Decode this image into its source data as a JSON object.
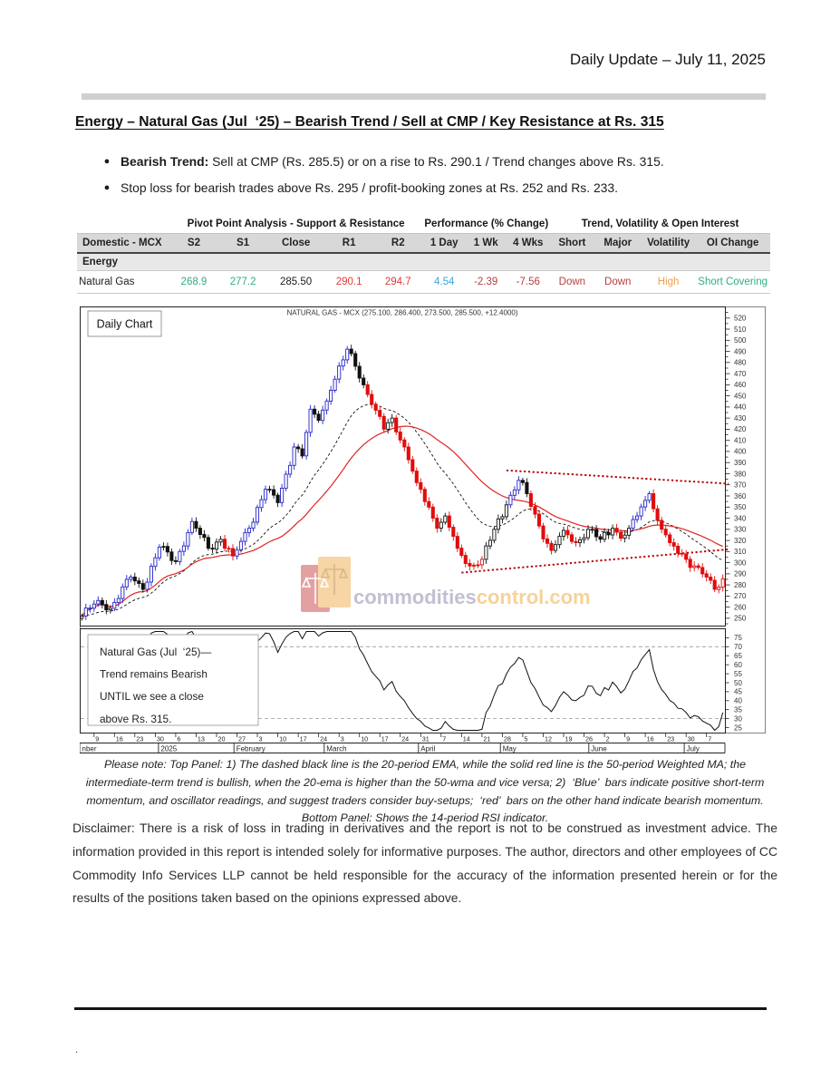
{
  "page": {
    "header_date": "Daily Update – July 11, 2025",
    "title": "Energy – Natural Gas (Jul  ‘25) – Bearish Trend / Sell at CMP / Key Resistance at Rs. 315",
    "bullets": [
      {
        "bold": "Bearish Trend:",
        "text": " Sell at CMP (Rs. 285.5) or on a rise to Rs. 290.1 / Trend changes above Rs. 315."
      },
      {
        "bold": "",
        "text": "Stop loss for bearish trades above Rs. 295 / profit-booking zones at Rs. 252 and Rs. 233."
      }
    ],
    "note": "Please note: Top Panel: 1) The dashed black line is the 20-period EMA, while the solid red line is the 50-period Weighted MA; the intermediate-term trend is bullish, when the 20-ema is higher than the 50-wma and vice versa; 2)  ‘Blue’  bars indicate positive short-term momentum, and oscillator readings, and suggest traders consider buy-setups;  ‘red’  bars on the other hand indicate bearish momentum. Bottom Panel: Shows the 14-period RSI indicator.",
    "disclaimer": "Disclaimer: There is a risk of loss in trading in derivatives and the report is not to be construed as investment advice. The information provided in this report is intended solely for informative purposes. The author, directors and other employees of CC Commodity Info Services LLP cannot be held responsible for the accuracy of the information presented herein or for the results of the positions taken based on the opinions expressed above.",
    "footer_dot": "."
  },
  "table": {
    "group_headers": [
      "Pivot Point Analysis - Support & Resistance",
      "Performance (% Change)",
      "Trend, Volatility & Open Interest"
    ],
    "columns": [
      "Domestic - MCX",
      "S2",
      "S1",
      "Close",
      "R1",
      "R2",
      "1 Day",
      "1 Wk",
      "4 Wks",
      "Short",
      "Major",
      "Volatility",
      "OI Change"
    ],
    "section_label": "Energy",
    "rows": [
      {
        "name": "Natural Gas",
        "cells": [
          {
            "v": "268.9",
            "c": "green"
          },
          {
            "v": "277.2",
            "c": "green"
          },
          {
            "v": "285.50",
            "c": "black"
          },
          {
            "v": "290.1",
            "c": "red"
          },
          {
            "v": "294.7",
            "c": "red"
          },
          {
            "v": "4.54",
            "c": "blue"
          },
          {
            "v": "-2.39",
            "c": "darkred"
          },
          {
            "v": "-7.56",
            "c": "darkred"
          },
          {
            "v": "Down",
            "c": "darkred"
          },
          {
            "v": "Down",
            "c": "darkred"
          },
          {
            "v": "High",
            "c": "orange"
          },
          {
            "v": "Short Covering",
            "c": "green"
          }
        ]
      }
    ]
  },
  "chart_data": {
    "type": "candlestick+rsi",
    "title": "NATURAL GAS - MCX (275.100, 286.400, 273.500, 285.500, +12.4000)",
    "panel_label": "Daily Chart",
    "last_ohlc": {
      "open": 275.1,
      "high": 286.4,
      "low": 273.5,
      "close": 285.5,
      "change": "+12.4000"
    },
    "watermark": {
      "part1": "commodities",
      "part2": "control.com"
    },
    "annotation_lines": [
      "Natural Gas (Jul  ‘25)—",
      "Trend remains Bearish",
      "UNTIL we see a close",
      "above Rs. 315."
    ],
    "price_axis": {
      "min": 243,
      "max": 530,
      "label_min": 250,
      "label_max": 520,
      "label_step": 10,
      "tick_step": 5
    },
    "rsi_axis": {
      "min": 22,
      "max": 80,
      "label_min": 25,
      "label_max": 75,
      "label_step": 5,
      "bands": [
        30,
        70
      ],
      "period": 14
    },
    "n_bars": 158,
    "ema_period": 20,
    "wma_period": 50,
    "anchors": [
      [
        0,
        252,
        "k"
      ],
      [
        4,
        266,
        "b"
      ],
      [
        7,
        259,
        "k"
      ],
      [
        12,
        287,
        "b"
      ],
      [
        15,
        276,
        "k"
      ],
      [
        19,
        314,
        "b"
      ],
      [
        23,
        301,
        "k"
      ],
      [
        27,
        337,
        "b"
      ],
      [
        31,
        313,
        "k"
      ],
      [
        34,
        321,
        "k"
      ],
      [
        37,
        306,
        "r"
      ],
      [
        41,
        331,
        "b"
      ],
      [
        45,
        366,
        "b"
      ],
      [
        48,
        354,
        "k"
      ],
      [
        52,
        404,
        "b"
      ],
      [
        54,
        396,
        "k"
      ],
      [
        56,
        438,
        "b"
      ],
      [
        58,
        428,
        "k"
      ],
      [
        61,
        455,
        "b"
      ],
      [
        65,
        492,
        "b"
      ],
      [
        66,
        488,
        "k"
      ],
      [
        69,
        460,
        "k"
      ],
      [
        72,
        437,
        "r"
      ],
      [
        74,
        420,
        "r"
      ],
      [
        76,
        430,
        "k"
      ],
      [
        79,
        404,
        "r"
      ],
      [
        82,
        372,
        "r"
      ],
      [
        85,
        350,
        "r"
      ],
      [
        87,
        331,
        "r"
      ],
      [
        89,
        342,
        "k"
      ],
      [
        92,
        313,
        "r"
      ],
      [
        95,
        297,
        "r"
      ],
      [
        98,
        303,
        "r"
      ],
      [
        101,
        330,
        "k"
      ],
      [
        104,
        352,
        "k"
      ],
      [
        107,
        374,
        "b"
      ],
      [
        109,
        362,
        "k"
      ],
      [
        112,
        333,
        "r"
      ],
      [
        115,
        311,
        "r"
      ],
      [
        118,
        329,
        "k"
      ],
      [
        121,
        318,
        "r"
      ],
      [
        124,
        330,
        "k"
      ],
      [
        127,
        321,
        "k"
      ],
      [
        130,
        331,
        "k"
      ],
      [
        132,
        322,
        "r"
      ],
      [
        134,
        331,
        "k"
      ],
      [
        136,
        342,
        "b"
      ],
      [
        139,
        362,
        "b"
      ],
      [
        141,
        338,
        "r"
      ],
      [
        144,
        318,
        "r"
      ],
      [
        148,
        303,
        "r"
      ],
      [
        152,
        290,
        "r"
      ],
      [
        155,
        276,
        "r"
      ],
      [
        156,
        278,
        "r"
      ],
      [
        157,
        285.5,
        "r"
      ]
    ],
    "trendlines": [
      {
        "b1": 104,
        "p1": 383,
        "p2": 371
      },
      {
        "b1": 93,
        "p1": 291,
        "p2": 312
      }
    ],
    "week_tick_start_bar": 3,
    "week_tick_step": 5,
    "week_labels": [
      "9",
      "16",
      "23",
      "30",
      "6",
      "13",
      "20",
      "27",
      "3",
      "10",
      "17",
      "24",
      "3",
      "10",
      "17",
      "24",
      "31",
      "7",
      "14",
      "21",
      "28",
      "5",
      "12",
      "19",
      "26",
      "2",
      "9",
      "16",
      "23",
      "30",
      "7"
    ],
    "months": {
      "labels": [
        "nber",
        "2025",
        "February",
        "March",
        "April",
        "May",
        "June",
        "July"
      ],
      "boundaries": [
        0,
        0.122,
        0.239,
        0.379,
        0.525,
        0.652,
        0.789,
        0.937,
        1
      ]
    },
    "colors": {
      "up_blue": "#2424c8",
      "down_red": "#e00d0d",
      "neutral": "#111111",
      "wma_line": "#e02424",
      "ema_line": "#111111",
      "trendline": "#b00000"
    }
  }
}
